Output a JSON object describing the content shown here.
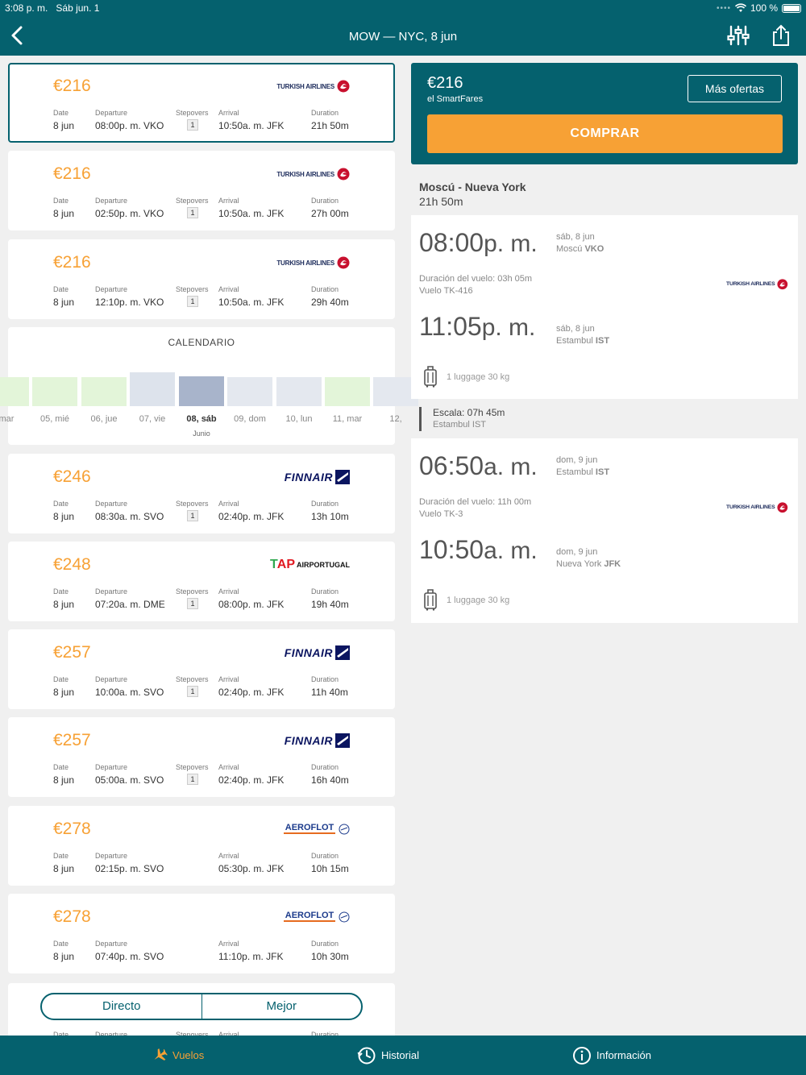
{
  "status": {
    "time": "3:08 p. m.",
    "date": "Sáb jun. 1",
    "battery": "100 %"
  },
  "header": {
    "title": "MOW — NYC, 8 jun"
  },
  "labels": {
    "date": "Date",
    "departure": "Departure",
    "stepovers": "Stepovers",
    "arrival": "Arrival",
    "duration": "Duration"
  },
  "flights": [
    {
      "price": "€216",
      "airline": "TURKISH AIRLINES",
      "date": "8 jun",
      "departure": "08:00p. m. VKO",
      "stops": "1",
      "arrival": "10:50a. m. JFK",
      "duration": "21h 50m"
    },
    {
      "price": "€216",
      "airline": "TURKISH AIRLINES",
      "date": "8 jun",
      "departure": "02:50p. m. VKO",
      "stops": "1",
      "arrival": "10:50a. m. JFK",
      "duration": "27h 00m"
    },
    {
      "price": "€216",
      "airline": "TURKISH AIRLINES",
      "date": "8 jun",
      "departure": "12:10p. m. VKO",
      "stops": "1",
      "arrival": "10:50a. m. JFK",
      "duration": "29h 40m"
    },
    {
      "price": "€246",
      "airline": "FINNAIR",
      "date": "8 jun",
      "departure": "08:30a. m. SVO",
      "stops": "1",
      "arrival": "02:40p. m. JFK",
      "duration": "13h 10m"
    },
    {
      "price": "€248",
      "airline": "AIRPORTUGAL",
      "date": "8 jun",
      "departure": "07:20a. m. DME",
      "stops": "1",
      "arrival": "08:00p. m. JFK",
      "duration": "19h 40m"
    },
    {
      "price": "€257",
      "airline": "FINNAIR",
      "date": "8 jun",
      "departure": "10:00a. m. SVO",
      "stops": "1",
      "arrival": "02:40p. m. JFK",
      "duration": "11h 40m"
    },
    {
      "price": "€257",
      "airline": "FINNAIR",
      "date": "8 jun",
      "departure": "05:00a. m. SVO",
      "stops": "1",
      "arrival": "02:40p. m. JFK",
      "duration": "16h 40m"
    },
    {
      "price": "€278",
      "airline": "AEROFLOT",
      "date": "8 jun",
      "departure": "02:15p. m. SVO",
      "stops": "",
      "arrival": "05:30p. m. JFK",
      "duration": "10h 15m"
    },
    {
      "price": "€278",
      "airline": "AEROFLOT",
      "date": "8 jun",
      "departure": "07:40p. m. SVO",
      "stops": "",
      "arrival": "11:10p. m. JFK",
      "duration": "10h 30m"
    }
  ],
  "calendar": {
    "title": "CALENDARIO",
    "month": "Junio",
    "days": [
      {
        "label": "mar",
        "level": 0.85,
        "color": "#e3f5d9"
      },
      {
        "label": "05, mié",
        "level": 0.85,
        "color": "#e3f5d9"
      },
      {
        "label": "06, jue",
        "level": 0.85,
        "color": "#e3f5d9"
      },
      {
        "label": "07, vie",
        "level": 1.0,
        "color": "#dde3ec"
      },
      {
        "label": "08, sáb",
        "level": 0.88,
        "color": "#a8b4cb",
        "active": true
      },
      {
        "label": "09, dom",
        "level": 0.85,
        "color": "#e4e8ef"
      },
      {
        "label": "10, lun",
        "level": 0.85,
        "color": "#e4e8ef"
      },
      {
        "label": "11, mar",
        "level": 0.85,
        "color": "#e3f5d9"
      },
      {
        "label": "12,",
        "level": 0.85,
        "color": "#e4e8ef"
      }
    ]
  },
  "toggle": {
    "left": "Directo",
    "right": "Mejor"
  },
  "buy": {
    "price": "€216",
    "provider": "el SmartFares",
    "more_label": "Más ofertas",
    "buy_label": "COMPRAR"
  },
  "route": {
    "title": "Moscú - Nueva York",
    "duration": "21h 50m"
  },
  "segments": [
    {
      "dep_time": "08:00",
      "dep_ampm": "p. m.",
      "dep_date": "sáb, 8 jun",
      "dep_city": "Moscú",
      "dep_code": "VKO",
      "flight_duration": "Duración del vuelo: 03h 05m",
      "flight_no": "Vuelo TK-416",
      "arr_time": "11:05",
      "arr_ampm": "p. m.",
      "arr_date": "sáb, 8 jun",
      "arr_city": "Estambul",
      "arr_code": "IST",
      "luggage": "1 luggage 30 kg",
      "airline": "TURKISH AIRLINES"
    },
    {
      "dep_time": "06:50",
      "dep_ampm": "a. m.",
      "dep_date": "dom, 9 jun",
      "dep_city": "Estambul",
      "dep_code": "IST",
      "flight_duration": "Duración del vuelo: 11h 00m",
      "flight_no": "Vuelo TK-3",
      "arr_time": "10:50",
      "arr_ampm": "a. m.",
      "arr_date": "dom, 9 jun",
      "arr_city": "Nueva York",
      "arr_code": "JFK",
      "luggage": "1 luggage 30 kg",
      "airline": "TURKISH AIRLINES"
    }
  ],
  "layover": {
    "title": "Escala: 07h 45m",
    "place": "Estambul IST"
  },
  "tabs": [
    {
      "label": "Vuelos",
      "icon": "plane-icon",
      "active": true
    },
    {
      "label": "Historial",
      "icon": "history-icon"
    },
    {
      "label": "Información",
      "icon": "info-icon"
    }
  ],
  "colors": {
    "primary": "#05616e",
    "accent": "#f7a135"
  }
}
